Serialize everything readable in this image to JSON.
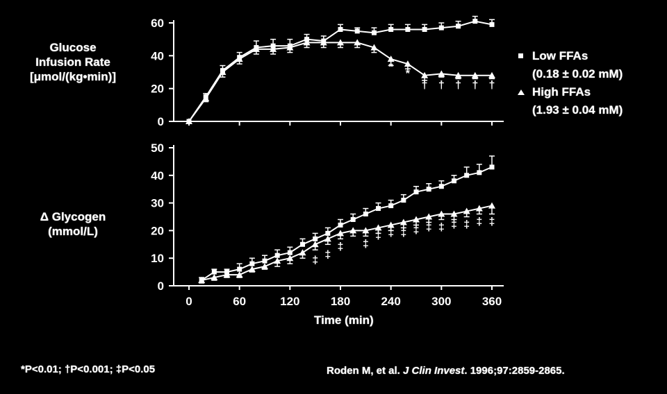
{
  "chart_data": [
    {
      "type": "line",
      "ylabel_lines": [
        "Glucose",
        "Infusion Rate",
        "[μmol/(kg•min)]"
      ],
      "x_ticks": [
        0,
        60,
        120,
        180,
        240,
        300,
        360
      ],
      "y_ticks": [
        0,
        20,
        40,
        60
      ],
      "ylim": [
        0,
        60
      ],
      "xlim": [
        0,
        360
      ],
      "series": [
        {
          "name": "Low FFAs",
          "marker": "square",
          "x": [
            0,
            20,
            40,
            60,
            80,
            100,
            120,
            140,
            160,
            180,
            200,
            220,
            240,
            260,
            280,
            300,
            320,
            340,
            360
          ],
          "values": [
            0,
            15,
            31,
            39,
            45,
            46,
            46,
            50,
            49,
            56,
            55,
            54,
            56,
            56,
            56,
            57,
            58,
            61,
            59
          ],
          "errors": [
            0,
            2,
            3,
            3,
            4,
            4,
            4,
            3,
            3,
            3,
            2,
            3,
            3,
            3,
            3,
            3,
            3,
            3,
            3
          ]
        },
        {
          "name": "High FFAs",
          "marker": "triangle",
          "x": [
            0,
            20,
            40,
            60,
            80,
            100,
            120,
            140,
            160,
            180,
            200,
            220,
            240,
            260,
            280,
            300,
            320,
            340,
            360
          ],
          "values": [
            0,
            14,
            30,
            38,
            44,
            44,
            45,
            48,
            48,
            48,
            48,
            45,
            38,
            35,
            28,
            29,
            28,
            28,
            28
          ],
          "errors": [
            0,
            2,
            3,
            3,
            3,
            3,
            3,
            3,
            3,
            3,
            3,
            3,
            4,
            3,
            3,
            2,
            2,
            2,
            2
          ]
        }
      ],
      "annotations": [
        {
          "x": 240,
          "y": 31,
          "text": "*"
        },
        {
          "x": 260,
          "y": 27,
          "text": "*"
        },
        {
          "x": 280,
          "y": 20,
          "text": "†"
        },
        {
          "x": 300,
          "y": 20,
          "text": "†"
        },
        {
          "x": 320,
          "y": 20,
          "text": "†"
        },
        {
          "x": 340,
          "y": 20,
          "text": "†"
        },
        {
          "x": 360,
          "y": 20,
          "text": "†"
        }
      ]
    },
    {
      "type": "line",
      "ylabel_lines": [
        "Δ Glycogen",
        "(mmol/L)"
      ],
      "xlabel": "Time (min)",
      "x_ticks": [
        0,
        60,
        120,
        180,
        240,
        300,
        360
      ],
      "y_ticks": [
        0,
        10,
        20,
        30,
        40,
        50
      ],
      "ylim": [
        0,
        50
      ],
      "xlim": [
        0,
        360
      ],
      "series": [
        {
          "name": "Low FFAs",
          "marker": "square",
          "x": [
            15,
            30,
            45,
            60,
            75,
            90,
            105,
            120,
            135,
            150,
            165,
            180,
            195,
            210,
            225,
            240,
            255,
            270,
            285,
            300,
            315,
            330,
            345,
            360
          ],
          "values": [
            2,
            5,
            5,
            6,
            8,
            9,
            11,
            12,
            15,
            17,
            19,
            22,
            24,
            26,
            28,
            29,
            31,
            34,
            35,
            36,
            38,
            40,
            41,
            43
          ],
          "errors": [
            1,
            1,
            1,
            2,
            2,
            2,
            2,
            2,
            2,
            2,
            2,
            2,
            2,
            2,
            2,
            2,
            2,
            2,
            2,
            2,
            2,
            3,
            3,
            4
          ]
        },
        {
          "name": "High FFAs",
          "marker": "triangle",
          "x": [
            15,
            30,
            45,
            60,
            75,
            90,
            105,
            120,
            135,
            150,
            165,
            180,
            195,
            210,
            225,
            240,
            255,
            270,
            285,
            300,
            315,
            330,
            345,
            360
          ],
          "values": [
            2,
            3,
            4,
            4,
            6,
            7,
            9,
            10,
            12,
            15,
            17,
            19,
            20,
            20,
            21,
            22,
            23,
            24,
            25,
            26,
            26,
            27,
            28,
            29
          ],
          "errors": [
            1,
            1,
            1,
            1,
            1,
            1,
            2,
            2,
            2,
            2,
            2,
            2,
            2,
            2,
            2,
            2,
            2,
            2,
            2,
            2,
            2,
            2,
            2,
            3
          ]
        }
      ],
      "annotations": [
        {
          "x": 150,
          "y": 8,
          "text": "‡"
        },
        {
          "x": 165,
          "y": 10,
          "text": "‡"
        },
        {
          "x": 180,
          "y": 13,
          "text": "‡"
        },
        {
          "x": 210,
          "y": 14,
          "text": "‡"
        },
        {
          "x": 225,
          "y": 17,
          "text": "‡"
        },
        {
          "x": 240,
          "y": 18,
          "text": "‡"
        },
        {
          "x": 255,
          "y": 18,
          "text": "‡"
        },
        {
          "x": 270,
          "y": 19,
          "text": "‡"
        },
        {
          "x": 285,
          "y": 20,
          "text": "‡"
        },
        {
          "x": 300,
          "y": 20,
          "text": "‡"
        },
        {
          "x": 315,
          "y": 21,
          "text": "‡"
        },
        {
          "x": 330,
          "y": 21,
          "text": "‡"
        },
        {
          "x": 345,
          "y": 22,
          "text": "‡"
        },
        {
          "x": 360,
          "y": 22,
          "text": "‡"
        }
      ]
    }
  ],
  "legend": {
    "low_label": "Low FFAs",
    "low_value": "(0.18 ± 0.02 mM)",
    "high_label": "High FFAs",
    "high_value": "(1.93 ± 0.04 mM)"
  },
  "footer": {
    "significance": "*P<0.01; †P<0.001; ‡P<0.05",
    "citation_authors": "Roden M, et al. ",
    "citation_journal": "J Clin Invest",
    "citation_rest": ". 1996;97:2859-2865."
  },
  "colors": {
    "background": "#000000",
    "foreground": "#ffffff"
  }
}
